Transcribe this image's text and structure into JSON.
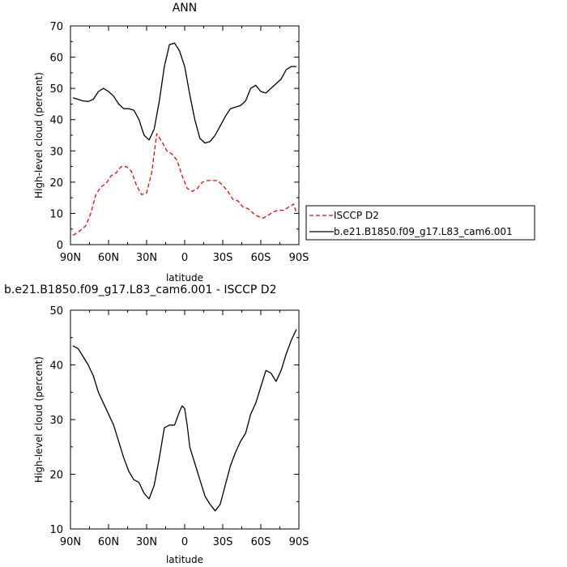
{
  "chart_data": [
    {
      "type": "line",
      "title": "ANN",
      "xlabel": "latitude",
      "ylabel": "High-level cloud (percent)",
      "x_ticks": [
        "90N",
        "60N",
        "30N",
        "0",
        "30S",
        "60S",
        "90S"
      ],
      "x_tick_values": [
        90,
        60,
        30,
        0,
        -30,
        -60,
        -90
      ],
      "xlim": [
        90,
        -90
      ],
      "ylim": [
        0,
        70
      ],
      "y_ticks": [
        0,
        10,
        20,
        30,
        40,
        50,
        60,
        70
      ],
      "legend_position": "right",
      "series": [
        {
          "name": "ISCCP D2",
          "color": "#ff0000",
          "dash": "dashed",
          "x": [
            88,
            84,
            78,
            74,
            70,
            66,
            62,
            58,
            54,
            50,
            46,
            42,
            38,
            34,
            30,
            26,
            22,
            18,
            14,
            10,
            6,
            2,
            -2,
            -6,
            -10,
            -14,
            -18,
            -22,
            -26,
            -30,
            -34,
            -38,
            -42,
            -46,
            -50,
            -54,
            -58,
            -62,
            -66,
            -70,
            -74,
            -78,
            -82,
            -86,
            -88
          ],
          "y": [
            3,
            4,
            6,
            10,
            16,
            18.5,
            19.5,
            22,
            23,
            25,
            25,
            23.5,
            19,
            16,
            16.5,
            23,
            35.5,
            33,
            30,
            29,
            27,
            22,
            18,
            17,
            18,
            20,
            20.5,
            20.5,
            20.5,
            19,
            17,
            14.5,
            14,
            12,
            11.5,
            10,
            9,
            8.5,
            9.5,
            10.5,
            11,
            11,
            12,
            13,
            10
          ]
        },
        {
          "name": "b.e21.B1850.f09_g17.L83_cam6.001",
          "color": "#000000",
          "dash": "solid",
          "x": [
            88,
            84,
            80,
            76,
            72,
            68,
            64,
            60,
            56,
            52,
            48,
            44,
            40,
            36,
            32,
            28,
            24,
            20,
            16,
            12,
            8,
            4,
            0,
            -4,
            -8,
            -12,
            -16,
            -20,
            -24,
            -28,
            -32,
            -36,
            -40,
            -44,
            -48,
            -52,
            -56,
            -60,
            -64,
            -68,
            -72,
            -76,
            -80,
            -84,
            -88
          ],
          "y": [
            47,
            46.5,
            46,
            45.8,
            46.5,
            49,
            50,
            49,
            47.5,
            45,
            43.5,
            43.5,
            43,
            40,
            35,
            33.5,
            37,
            46,
            57,
            64,
            64.5,
            62,
            57,
            48,
            40,
            34,
            32.5,
            33,
            35,
            38,
            41,
            43.5,
            44,
            44.5,
            46,
            50,
            51,
            49,
            48.5,
            50,
            51.5,
            53,
            56,
            57,
            57
          ]
        }
      ]
    },
    {
      "type": "line",
      "title": "b.e21.B1850.f09_g17.L83_cam6.001  -  ISCCP D2",
      "xlabel": "latitude",
      "ylabel": "High-level cloud (percent)",
      "x_ticks": [
        "90N",
        "60N",
        "30N",
        "0",
        "30S",
        "60S",
        "90S"
      ],
      "x_tick_values": [
        90,
        60,
        30,
        0,
        -30,
        -60,
        -90
      ],
      "xlim": [
        90,
        -90
      ],
      "ylim": [
        10,
        50
      ],
      "y_ticks": [
        10,
        20,
        30,
        40,
        50
      ],
      "series": [
        {
          "name": "",
          "color": "#000000",
          "dash": "solid",
          "x": [
            88,
            84,
            80,
            76,
            72,
            68,
            64,
            60,
            56,
            52,
            48,
            44,
            40,
            36,
            32,
            28,
            24,
            20,
            16,
            12,
            8,
            4,
            2,
            0,
            -2,
            -4,
            -8,
            -12,
            -16,
            -20,
            -24,
            -28,
            -32,
            -36,
            -40,
            -44,
            -48,
            -52,
            -56,
            -60,
            -64,
            -68,
            -72,
            -76,
            -80,
            -84,
            -88
          ],
          "y": [
            43.5,
            43,
            41.5,
            40,
            38,
            35,
            33,
            31,
            29,
            26,
            23,
            20.5,
            19,
            18.5,
            16.5,
            15.5,
            18,
            23,
            28.5,
            29,
            29,
            31.5,
            32.5,
            32,
            29,
            25,
            22,
            19,
            16,
            14.5,
            13.3,
            14.5,
            18,
            21.5,
            24,
            26,
            27.5,
            31,
            33,
            36,
            39,
            38.5,
            37,
            39,
            42,
            44.5,
            46.5
          ]
        }
      ]
    }
  ]
}
